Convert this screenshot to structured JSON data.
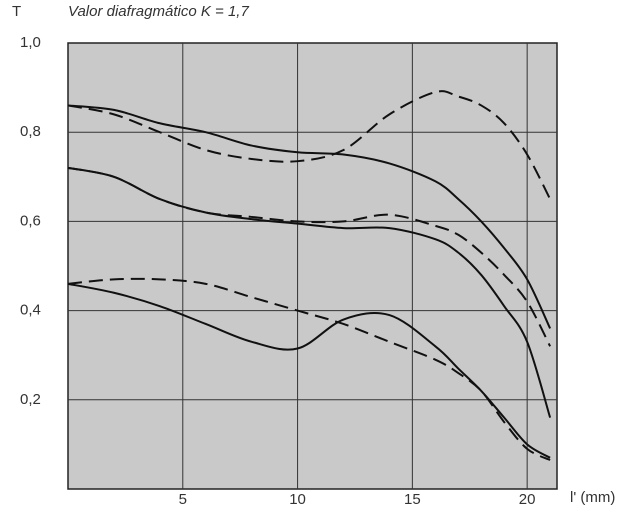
{
  "chart_data": {
    "type": "line",
    "title": "Valor diafragmático K = 1,7",
    "y_label": "T",
    "x_label": "l' (mm)",
    "x": [
      0,
      2,
      4,
      6,
      8,
      10,
      12,
      14,
      16,
      17,
      18,
      19,
      20,
      21
    ],
    "series": [
      {
        "color": "#111111",
        "dashed": false,
        "values": [
          0.86,
          0.85,
          0.82,
          0.8,
          0.77,
          0.755,
          0.75,
          0.73,
          0.69,
          0.65,
          0.6,
          0.54,
          0.47,
          0.36
        ]
      },
      {
        "color": "#111111",
        "dashed": true,
        "values": [
          0.86,
          0.84,
          0.8,
          0.76,
          0.74,
          0.735,
          0.76,
          0.84,
          0.89,
          0.88,
          0.86,
          0.82,
          0.75,
          0.65
        ]
      },
      {
        "color": "#111111",
        "dashed": false,
        "values": [
          0.72,
          0.7,
          0.65,
          0.62,
          0.605,
          0.595,
          0.585,
          0.585,
          0.56,
          0.53,
          0.48,
          0.41,
          0.33,
          0.16
        ]
      },
      {
        "color": "#111111",
        "dashed": true,
        "values": [
          0.72,
          0.7,
          0.65,
          0.62,
          0.61,
          0.6,
          0.6,
          0.615,
          0.59,
          0.57,
          0.53,
          0.48,
          0.42,
          0.32
        ]
      },
      {
        "color": "#111111",
        "dashed": false,
        "values": [
          0.46,
          0.44,
          0.41,
          0.37,
          0.33,
          0.315,
          0.38,
          0.39,
          0.32,
          0.27,
          0.22,
          0.16,
          0.1,
          0.07
        ]
      },
      {
        "color": "#111111",
        "dashed": true,
        "values": [
          0.46,
          0.47,
          0.47,
          0.46,
          0.43,
          0.4,
          0.37,
          0.33,
          0.29,
          0.26,
          0.22,
          0.15,
          0.09,
          0.065
        ]
      }
    ],
    "xlim": [
      0,
      21.3
    ],
    "ylim": [
      0,
      1.0
    ],
    "xticks": [
      5,
      10,
      15,
      20
    ],
    "yticks": [
      {
        "value": 0.2,
        "label": "0,2"
      },
      {
        "value": 0.4,
        "label": "0,4"
      },
      {
        "value": 0.6,
        "label": "0,6"
      },
      {
        "value": 0.8,
        "label": "0,8"
      },
      {
        "value": 1.0,
        "label": "1,0"
      }
    ],
    "grid": true
  }
}
